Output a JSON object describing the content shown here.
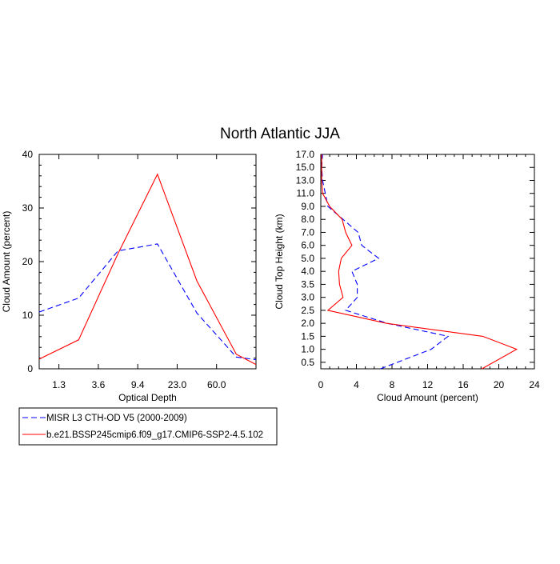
{
  "title": "North Atlantic JJA",
  "colors": {
    "misr": "#0000ff",
    "model": "#ff0000",
    "axis": "#000000"
  },
  "legend": {
    "placement": "bottom-left",
    "entries": [
      {
        "label": "MISR L3 CTH-OD V5 (2000-2009)",
        "color": "#0000ff",
        "dash": true
      },
      {
        "label": "b.e21.BSSP245cmip6.f09_g17.CMIP6-SSP2-4.5.102",
        "color": "#ff0000",
        "dash": false
      }
    ]
  },
  "chart_data": [
    {
      "type": "line",
      "xlabel": "Optical Depth",
      "ylabel": "Cloud Amount (percent)",
      "x_tick_labels": [
        "1.3",
        "3.6",
        "9.4",
        "23.0",
        "60.0"
      ],
      "x_tick_index": [
        0.5,
        1.5,
        2.5,
        3.5,
        4.5
      ],
      "xlim_index": [
        0,
        5.5
      ],
      "ylim": [
        0,
        40
      ],
      "y_ticks": [
        0,
        10,
        20,
        30,
        40
      ],
      "y_tick_labels": [
        "0",
        "10",
        "20",
        "30",
        "40"
      ],
      "x_index": [
        0,
        1,
        2,
        3,
        4,
        5,
        5.5
      ],
      "series": [
        {
          "name": "MISR L3 CTH-OD V5 (2000-2009)",
          "values": [
            10.6,
            13.2,
            22.0,
            23.3,
            10.4,
            2.2,
            1.7
          ]
        },
        {
          "name": "b.e21.BSSP245cmip6.f09_g17.CMIP6-SSP2-4.5.102",
          "values": [
            1.8,
            5.4,
            21.5,
            36.3,
            16.4,
            2.7,
            0.8
          ]
        }
      ]
    },
    {
      "type": "line",
      "xlabel": "Cloud Amount (percent)",
      "ylabel": "Cloud Top Height (km)",
      "xlim": [
        0,
        24
      ],
      "x_ticks": [
        0,
        4,
        8,
        12,
        16,
        20,
        24
      ],
      "x_tick_labels": [
        "0",
        "4",
        "8",
        "12",
        "16",
        "20",
        "24"
      ],
      "ylim_index": [
        0,
        16.5
      ],
      "y_tick_index": [
        0.5,
        1.5,
        2.5,
        3.5,
        4.5,
        5.5,
        6.5,
        7.5,
        8.5,
        9.5,
        10.5,
        11.5,
        12.5,
        13.5,
        14.5,
        15.5,
        16.5
      ],
      "y_tick_labels": [
        "0.5",
        "1.0",
        "1.5",
        "2.0",
        "2.5",
        "3.0",
        "3.5",
        "4.0",
        "5.0",
        "6.0",
        "7.0",
        "8.0",
        "9.0",
        "11.0",
        "13.0",
        "15.0",
        "17.0"
      ],
      "height_index": [
        0,
        1.5,
        2.5,
        3.5,
        4.5,
        5.5,
        6.5,
        7.5,
        8.5,
        9.5,
        10.5,
        11.5,
        12.5,
        13.5,
        14.5,
        15.5,
        16.5
      ],
      "series": [
        {
          "name": "MISR L3 CTH-OD V5 (2000-2009)",
          "values": [
            6.7,
            12.4,
            14.3,
            7.5,
            2.8,
            4.1,
            4.1,
            3.5,
            6.5,
            4.6,
            4.2,
            2.5,
            0.8,
            0.5,
            0.2,
            0.1,
            0.2
          ]
        },
        {
          "name": "b.e21.BSSP245cmip6.f09_g17.CMIP6-SSP2-4.5.102",
          "values": [
            18.1,
            22.0,
            18.2,
            7.4,
            0.8,
            2.5,
            2.1,
            2.0,
            2.3,
            3.5,
            2.8,
            2.4,
            1.0,
            0.2,
            0.1,
            0.1,
            0.1
          ]
        }
      ]
    }
  ]
}
